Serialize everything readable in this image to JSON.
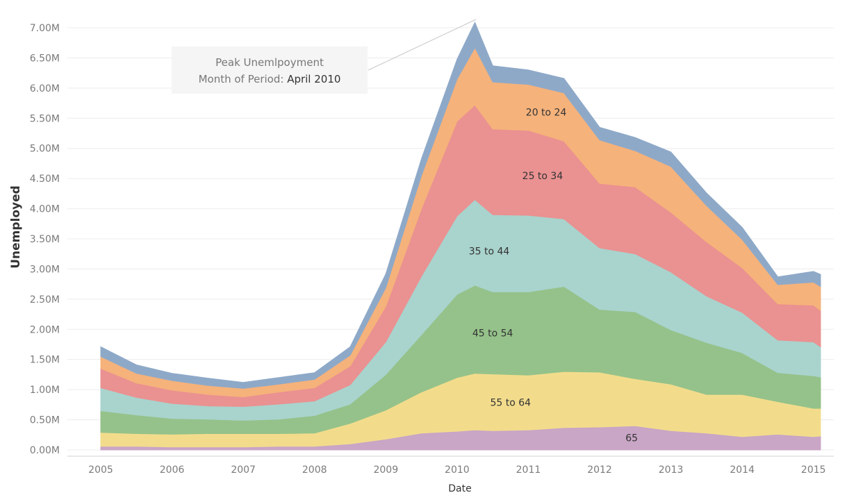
{
  "chart_data": {
    "type": "area",
    "stacked": true,
    "ylabel": "Unemployed",
    "xlabel": "Date",
    "y_ticks": [
      "0.00M",
      "0.50M",
      "1.00M",
      "1.50M",
      "2.00M",
      "2.50M",
      "3.00M",
      "3.50M",
      "4.00M",
      "4.50M",
      "5.00M",
      "5.50M",
      "6.00M",
      "6.50M",
      "7.00M"
    ],
    "x_ticks": [
      "2005",
      "2006",
      "2007",
      "2008",
      "2009",
      "2010",
      "2011",
      "2012",
      "2013",
      "2014",
      "2015"
    ],
    "ylim": [
      0,
      7.0
    ],
    "xlim": [
      2005.0,
      2015.1
    ],
    "y_unit": "millions",
    "grid": "horizontal",
    "legend": "none (inline labels)",
    "x": [
      2005.0,
      2005.5,
      2006.0,
      2006.5,
      2007.0,
      2007.5,
      2008.0,
      2008.5,
      2009.0,
      2009.5,
      2010.0,
      2010.25,
      2010.5,
      2011.0,
      2011.5,
      2012.0,
      2012.5,
      2013.0,
      2013.5,
      2014.0,
      2014.5,
      2015.0,
      2015.1
    ],
    "series": [
      {
        "name": "65",
        "color": "#c9a5c6",
        "values": [
          0.06,
          0.06,
          0.05,
          0.05,
          0.05,
          0.06,
          0.06,
          0.1,
          0.18,
          0.28,
          0.31,
          0.33,
          0.32,
          0.33,
          0.37,
          0.38,
          0.4,
          0.32,
          0.28,
          0.22,
          0.26,
          0.22,
          0.23
        ]
      },
      {
        "name": "55 to 64",
        "color": "#f2dc8c",
        "values": [
          0.23,
          0.21,
          0.21,
          0.22,
          0.22,
          0.21,
          0.22,
          0.34,
          0.48,
          0.68,
          0.89,
          0.94,
          0.94,
          0.91,
          0.93,
          0.91,
          0.78,
          0.77,
          0.64,
          0.7,
          0.54,
          0.47,
          0.46
        ]
      },
      {
        "name": "45 to 54",
        "color": "#95c28a",
        "values": [
          0.36,
          0.31,
          0.26,
          0.24,
          0.22,
          0.24,
          0.29,
          0.32,
          0.59,
          0.95,
          1.38,
          1.46,
          1.36,
          1.38,
          1.41,
          1.04,
          1.11,
          0.9,
          0.86,
          0.69,
          0.48,
          0.54,
          0.52
        ]
      },
      {
        "name": "35 to 44",
        "color": "#a9d3cd",
        "values": [
          0.38,
          0.29,
          0.25,
          0.22,
          0.23,
          0.25,
          0.24,
          0.32,
          0.54,
          0.97,
          1.3,
          1.42,
          1.28,
          1.27,
          1.12,
          1.02,
          0.96,
          0.96,
          0.77,
          0.67,
          0.54,
          0.56,
          0.5
        ]
      },
      {
        "name": "25 to 34",
        "color": "#ea9191",
        "values": [
          0.32,
          0.24,
          0.22,
          0.19,
          0.16,
          0.2,
          0.22,
          0.31,
          0.59,
          1.12,
          1.57,
          1.57,
          1.42,
          1.41,
          1.29,
          1.07,
          1.11,
          0.99,
          0.9,
          0.74,
          0.6,
          0.61,
          0.6
        ]
      },
      {
        "name": "20 to 24",
        "color": "#f5b27b",
        "values": [
          0.2,
          0.16,
          0.16,
          0.15,
          0.14,
          0.13,
          0.14,
          0.18,
          0.31,
          0.55,
          0.7,
          0.95,
          0.78,
          0.76,
          0.8,
          0.72,
          0.6,
          0.76,
          0.6,
          0.47,
          0.32,
          0.38,
          0.4
        ]
      },
      {
        "name": "",
        "color": "#8ea9c8",
        "values": [
          0.16,
          0.14,
          0.12,
          0.12,
          0.1,
          0.11,
          0.11,
          0.14,
          0.23,
          0.28,
          0.33,
          0.42,
          0.27,
          0.24,
          0.24,
          0.21,
          0.22,
          0.24,
          0.21,
          0.2,
          0.13,
          0.18,
          0.2
        ]
      }
    ],
    "annotation": {
      "line1": "Peak Unemlpoyment",
      "line2_prefix": "Month of Period: ",
      "line2_value": "April 2010"
    }
  }
}
